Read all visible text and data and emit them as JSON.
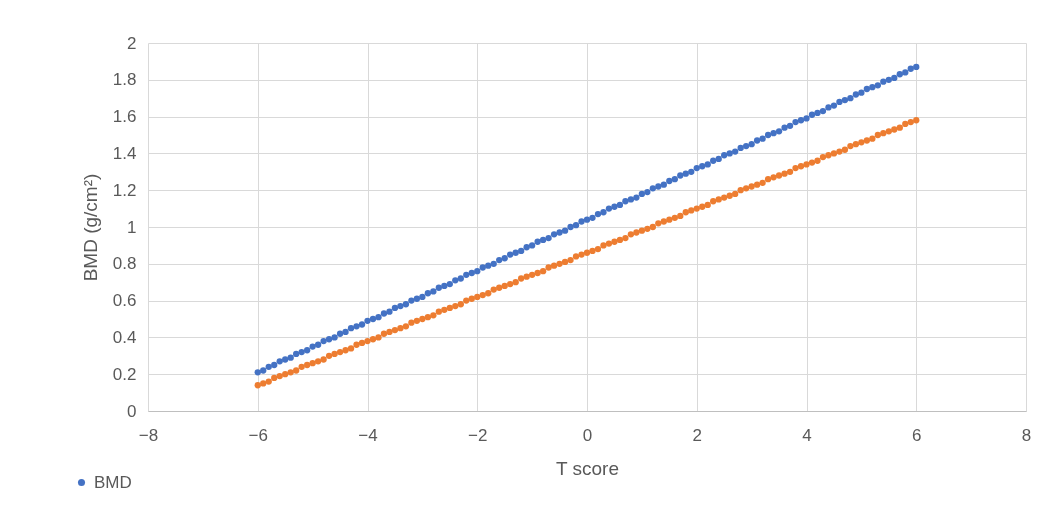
{
  "chart_data": {
    "type": "scatter",
    "xlabel": "T score",
    "ylabel": "BMD (g/cm²)",
    "x": [
      -6,
      -5.9,
      -5.8,
      -5.7,
      -5.6,
      -5.5,
      -5.4,
      -5.3,
      -5.2,
      -5.1,
      -5,
      -4.9,
      -4.8,
      -4.7,
      -4.6,
      -4.5,
      -4.4,
      -4.3,
      -4.2,
      -4.1,
      -4,
      -3.9,
      -3.8,
      -3.7,
      -3.6,
      -3.5,
      -3.4,
      -3.3,
      -3.2,
      -3.1,
      -3,
      -2.9,
      -2.8,
      -2.7,
      -2.6,
      -2.5,
      -2.4,
      -2.3,
      -2.2,
      -2.1,
      -2,
      -1.9,
      -1.8,
      -1.7,
      -1.6,
      -1.5,
      -1.4,
      -1.3,
      -1.2,
      -1.1,
      -1,
      -0.9,
      -0.8,
      -0.7,
      -0.6,
      -0.5,
      -0.4,
      -0.3,
      -0.2,
      -0.1,
      0,
      0.1,
      0.2,
      0.3,
      0.4,
      0.5,
      0.6,
      0.7,
      0.8,
      0.9,
      1,
      1.1,
      1.2,
      1.3,
      1.4,
      1.5,
      1.6,
      1.7,
      1.8,
      1.9,
      2,
      2.1,
      2.2,
      2.3,
      2.4,
      2.5,
      2.6,
      2.7,
      2.8,
      2.9,
      3,
      3.1,
      3.2,
      3.3,
      3.4,
      3.5,
      3.6,
      3.7,
      3.8,
      3.9,
      4,
      4.1,
      4.2,
      4.3,
      4.4,
      4.5,
      4.6,
      4.7,
      4.8,
      4.9,
      5,
      5.1,
      5.2,
      5.3,
      5.4,
      5.5,
      5.6,
      5.7,
      5.8,
      5.9,
      6
    ],
    "series": [
      {
        "name": "BMD",
        "color": "#4472c4",
        "values": [
          0.21,
          0.22,
          0.24,
          0.25,
          0.27,
          0.28,
          0.29,
          0.31,
          0.32,
          0.33,
          0.35,
          0.36,
          0.38,
          0.39,
          0.4,
          0.42,
          0.43,
          0.45,
          0.46,
          0.47,
          0.49,
          0.5,
          0.51,
          0.53,
          0.54,
          0.56,
          0.57,
          0.58,
          0.6,
          0.61,
          0.62,
          0.64,
          0.65,
          0.67,
          0.68,
          0.69,
          0.71,
          0.72,
          0.74,
          0.75,
          0.76,
          0.78,
          0.79,
          0.8,
          0.82,
          0.83,
          0.85,
          0.86,
          0.87,
          0.89,
          0.9,
          0.92,
          0.93,
          0.94,
          0.96,
          0.97,
          0.98,
          1.0,
          1.01,
          1.03,
          1.04,
          1.05,
          1.07,
          1.08,
          1.1,
          1.11,
          1.12,
          1.14,
          1.15,
          1.16,
          1.18,
          1.19,
          1.21,
          1.22,
          1.23,
          1.25,
          1.26,
          1.28,
          1.29,
          1.3,
          1.32,
          1.33,
          1.34,
          1.36,
          1.37,
          1.39,
          1.4,
          1.41,
          1.43,
          1.44,
          1.45,
          1.47,
          1.48,
          1.5,
          1.51,
          1.52,
          1.54,
          1.55,
          1.57,
          1.58,
          1.59,
          1.61,
          1.62,
          1.63,
          1.65,
          1.66,
          1.68,
          1.69,
          1.7,
          1.72,
          1.73,
          1.75,
          1.76,
          1.77,
          1.79,
          1.8,
          1.81,
          1.83,
          1.84,
          1.86,
          1.87
        ]
      },
      {
        "color": "#ed7d31",
        "values": [
          0.14,
          0.15,
          0.16,
          0.18,
          0.19,
          0.2,
          0.21,
          0.22,
          0.24,
          0.25,
          0.26,
          0.27,
          0.28,
          0.3,
          0.31,
          0.32,
          0.33,
          0.34,
          0.36,
          0.37,
          0.38,
          0.39,
          0.4,
          0.42,
          0.43,
          0.44,
          0.45,
          0.46,
          0.48,
          0.49,
          0.5,
          0.51,
          0.52,
          0.54,
          0.55,
          0.56,
          0.57,
          0.58,
          0.6,
          0.61,
          0.62,
          0.63,
          0.64,
          0.66,
          0.67,
          0.68,
          0.69,
          0.7,
          0.72,
          0.73,
          0.74,
          0.75,
          0.76,
          0.78,
          0.79,
          0.8,
          0.81,
          0.82,
          0.84,
          0.85,
          0.86,
          0.87,
          0.88,
          0.9,
          0.91,
          0.92,
          0.93,
          0.94,
          0.96,
          0.97,
          0.98,
          0.99,
          1.0,
          1.02,
          1.03,
          1.04,
          1.05,
          1.06,
          1.08,
          1.09,
          1.1,
          1.11,
          1.12,
          1.14,
          1.15,
          1.16,
          1.17,
          1.18,
          1.2,
          1.21,
          1.22,
          1.23,
          1.24,
          1.26,
          1.27,
          1.28,
          1.29,
          1.3,
          1.32,
          1.33,
          1.34,
          1.35,
          1.36,
          1.38,
          1.39,
          1.4,
          1.41,
          1.42,
          1.44,
          1.45,
          1.46,
          1.47,
          1.48,
          1.5,
          1.51,
          1.52,
          1.53,
          1.54,
          1.56,
          1.57,
          1.58
        ]
      }
    ],
    "xlim": [
      -8,
      8
    ],
    "xticks": [
      -8,
      -6,
      -4,
      -2,
      0,
      2,
      4,
      6,
      8
    ],
    "ylim": [
      0,
      2
    ],
    "yticks": [
      0,
      0.2,
      0.4,
      0.6,
      0.8,
      1,
      1.2,
      1.4,
      1.6,
      1.8,
      2
    ],
    "grid": true,
    "legend": "bottom left",
    "marker": "circle"
  }
}
